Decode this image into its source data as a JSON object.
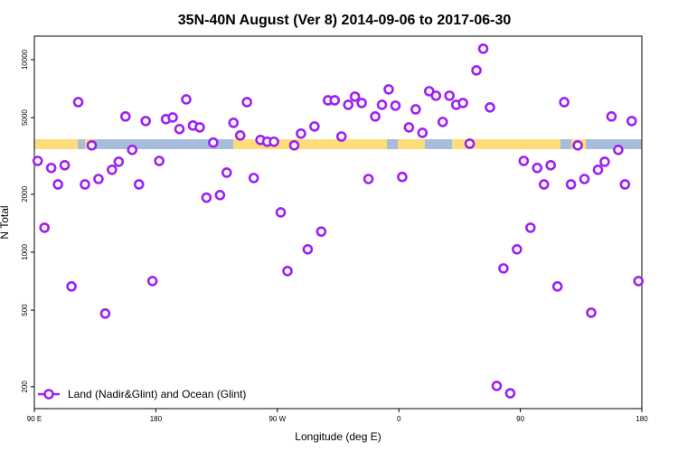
{
  "chart_data": {
    "type": "scatter",
    "title": "35N-40N August (Ver 8)   2014-09-06 to 2017-06-30",
    "x_label": "Longitude (deg E)",
    "y_label": "N Total",
    "ylog": true,
    "xlim": [
      90,
      540
    ],
    "ylim": [
      154,
      13250
    ],
    "xticks": [
      {
        "value": 90,
        "label": "90 E"
      },
      {
        "value": 180,
        "label": "180"
      },
      {
        "value": 270,
        "label": "90 W"
      },
      {
        "value": 360,
        "label": "0"
      },
      {
        "value": 450,
        "label": "90"
      },
      {
        "value": 540,
        "label": "180"
      }
    ],
    "yticks": [
      200,
      500,
      1000,
      2000,
      5000,
      10000
    ],
    "legend_position": "bottom-left",
    "x": [
      92.5,
      97.5,
      102.5,
      107.5,
      112.5,
      117.5,
      122.5,
      127.5,
      132.5,
      137.5,
      142.5,
      147.5,
      152.5,
      157.5,
      162.5,
      167.5,
      172.5,
      177.5,
      182.5,
      187.5,
      192.5,
      197.5,
      202.5,
      207.5,
      212.5,
      217.5,
      222.5,
      227.5,
      232.5,
      237.5,
      242.5,
      247.5,
      252.5,
      257.5,
      262.5,
      267.5,
      272.5,
      277.5,
      282.5,
      287.5,
      292.5,
      297.5,
      302.5,
      307.5,
      312.5,
      317.5,
      322.5,
      327.5,
      332.5,
      337.5,
      342.5,
      347.5,
      352.5,
      357.5,
      362.5,
      367.5,
      372.5,
      377.5,
      382.5,
      387.5,
      392.5,
      397.5,
      402.5,
      407.5,
      412.5,
      417.5,
      422.5,
      427.5,
      432.5,
      437.5,
      442.5,
      447.5,
      452.5,
      457.5,
      462.5,
      467.5,
      472.5,
      477.5,
      482.5,
      487.5,
      492.5,
      497.5,
      502.5,
      507.5,
      512.5,
      517.5,
      522.5,
      527.5,
      532.5,
      537.5
    ],
    "series": [
      {
        "name": "Land (Nadir&Glint) and Ocean (Glint)",
        "color": "#a020f0",
        "values": [
          2980,
          1340,
          2740,
          2250,
          2830,
          664,
          6020,
          2250,
          3590,
          2400,
          480,
          2680,
          2950,
          5070,
          3400,
          2250,
          4800,
          708,
          2980,
          4910,
          5010,
          4360,
          6220,
          4550,
          4450,
          1920,
          3710,
          1980,
          2590,
          4700,
          4040,
          6020,
          2430,
          3830,
          3750,
          3750,
          1610,
          798,
          3590,
          4130,
          1035,
          4500,
          1280,
          6150,
          6150,
          3990,
          5830,
          6430,
          5960,
          2400,
          5070,
          5830,
          7010,
          5770,
          2460,
          4450,
          5520,
          4170,
          6860,
          6500,
          4750,
          6500,
          5830,
          5960,
          3660,
          8800,
          11400,
          5650,
          202,
          824,
          185,
          1035,
          2980,
          1340,
          2740,
          2250,
          2830,
          664,
          6020,
          2250,
          3590,
          2400,
          485,
          2680,
          2950,
          5070,
          3400,
          2250,
          4800,
          708
        ]
      }
    ]
  }
}
